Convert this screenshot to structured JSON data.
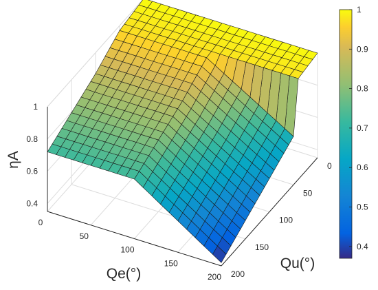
{
  "chart_data": {
    "type": "surface3d",
    "title": "",
    "xlabel": "Qe(°)",
    "ylabel": "Qu(°)",
    "zlabel": "ηA",
    "xlim": [
      0,
      200
    ],
    "ylim": [
      0,
      200
    ],
    "zlim": [
      0.35,
      1
    ],
    "x_ticks": [
      0,
      50,
      100,
      150,
      200
    ],
    "y_ticks": [
      0,
      50,
      100,
      150,
      200
    ],
    "z_ticks": [
      0.4,
      0.6,
      0.8,
      1
    ],
    "z_tick_labels": [
      "0.4",
      "0.6",
      "0.8",
      "1"
    ],
    "colorbar": {
      "colormap": "parula",
      "range": [
        0.37,
        1
      ],
      "ticks": [
        "0.4",
        "0.5",
        "0.6",
        "0.7",
        "0.8",
        "0.9",
        "1"
      ]
    },
    "grid": true,
    "surface_model": {
      "grid_step": 10,
      "plateau_value": 1.0,
      "qu_breakpoints": [
        50,
        100
      ],
      "qu_break_values": [
        0.97,
        0.87
      ],
      "qu_end_value": 0.72,
      "qe_flat_below_qu": 50,
      "qe_plateau_until": 100,
      "qe_end_value_at_qu0": 0.65,
      "qe_end_value_at_qu200": 0.37
    }
  }
}
